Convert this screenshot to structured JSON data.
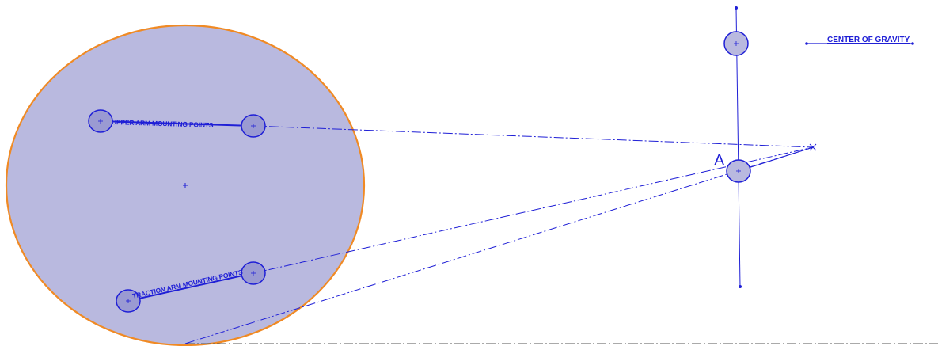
{
  "labels": {
    "upper_arm": "UPPER ARM MOUNTING POINTS",
    "traction_arm": "TRACTION ARM MOUNTING POINTS",
    "point_a": "A",
    "center_of_gravity": "CENTER OF GRAVITY"
  },
  "colors": {
    "line": "#1f1fd6",
    "fill": "#b9b9df",
    "outline": "#f08a24",
    "ground": "#555555"
  }
}
